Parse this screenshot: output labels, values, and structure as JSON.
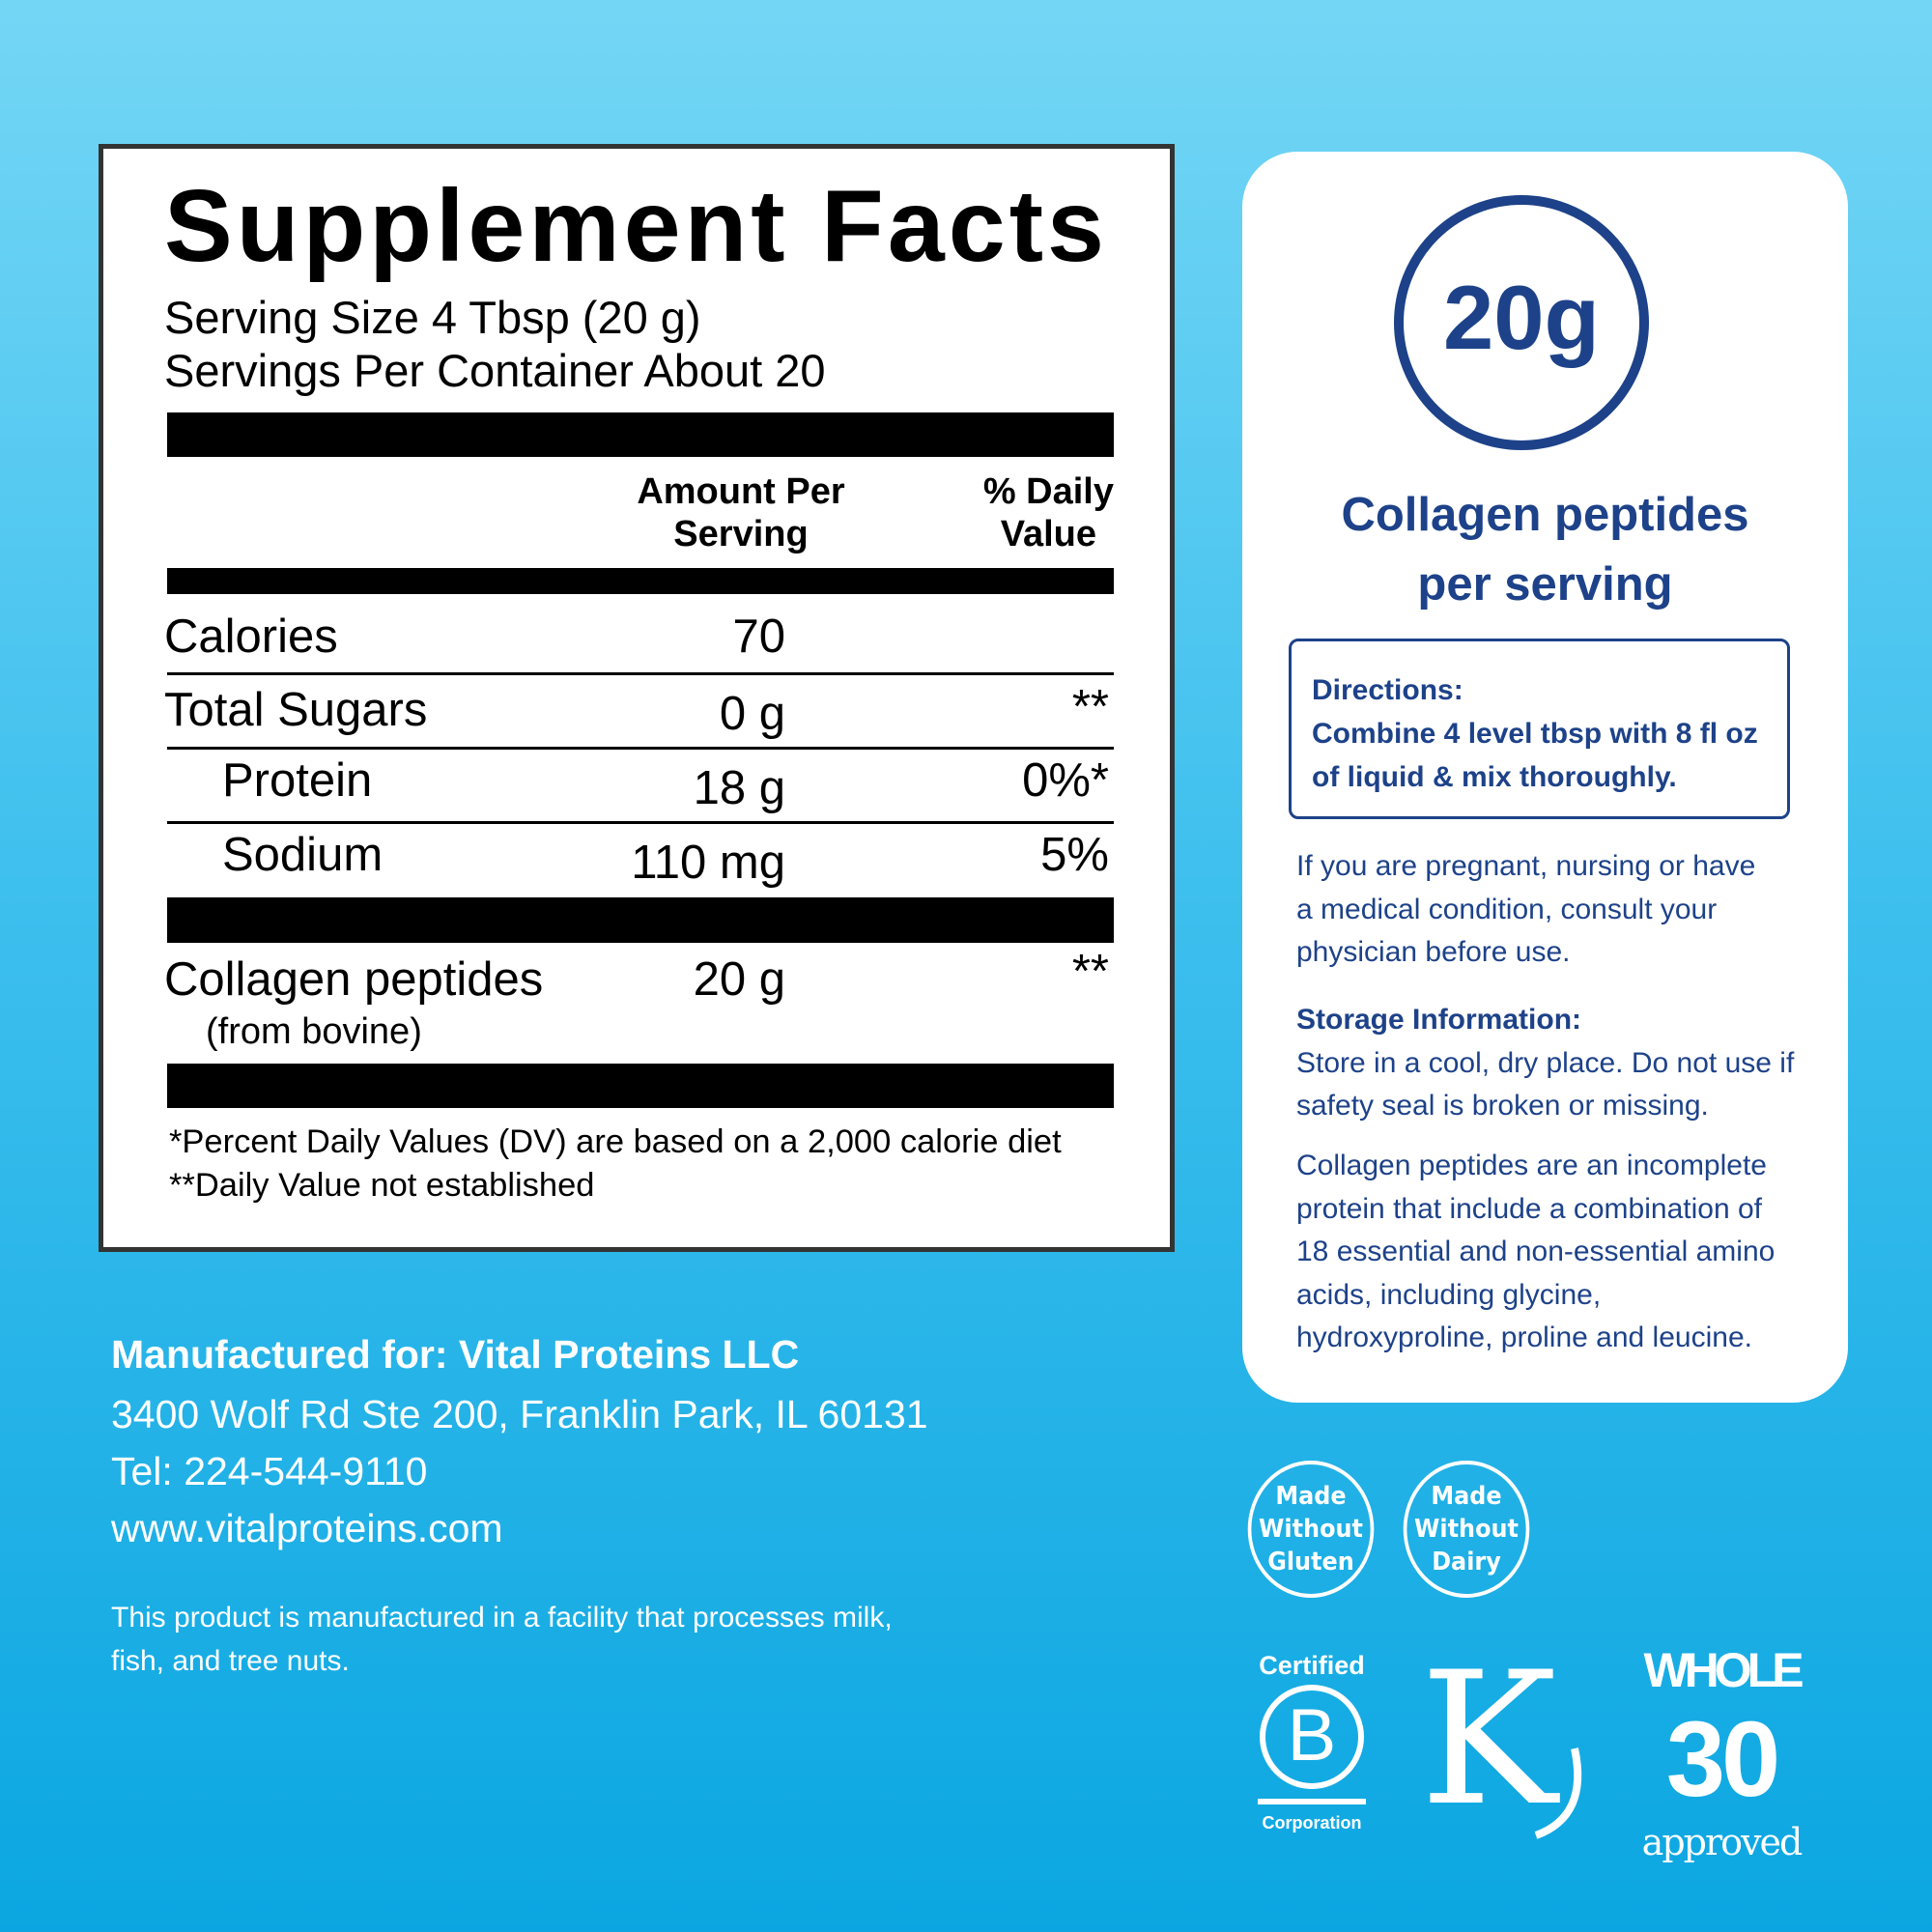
{
  "facts": {
    "title": "Supplement Facts",
    "serving_size": "Serving Size 4 Tbsp (20 g)",
    "servings_per_container": "Servings Per Container About 20",
    "header_amount": [
      "Amount Per",
      "Serving"
    ],
    "header_dv": [
      "% Daily",
      "Value"
    ],
    "rows": [
      {
        "name": "Calories",
        "amount": "70",
        "dv": ""
      },
      {
        "name": "Total Sugars",
        "amount": "0 g",
        "dv": "**"
      },
      {
        "name": "Protein",
        "amount": "18 g",
        "dv": "0%*"
      },
      {
        "name": "Sodium",
        "amount": "110 mg",
        "dv": "5%"
      }
    ],
    "collagen": {
      "name": "Collagen peptides",
      "source": "(from bovine)",
      "amount": "20 g",
      "dv": "**"
    },
    "footnotes": [
      "*Percent Daily Values (DV) are based on a 2,000 calorie diet",
      "**Daily Value not established"
    ]
  },
  "manufacturer": {
    "line1": "Manufactured for: Vital Proteins LLC",
    "address": "3400 Wolf Rd Ste 200, Franklin Park, IL 60131",
    "tel": "Tel: 224-544-9110",
    "website": "www.vitalproteins.com",
    "allergen": [
      "This product is manufactured in a facility that processes milk,",
      "fish, and tree nuts."
    ]
  },
  "card": {
    "amount": "20g",
    "caption": [
      "Collagen peptides",
      "per serving"
    ],
    "directions_title": "Directions:",
    "directions": [
      "Combine 4 level tbsp with 8 fl oz",
      "of liquid & mix thoroughly."
    ],
    "warning": [
      "If you are pregnant, nursing or have",
      "a medical condition, consult your",
      "physician before use."
    ],
    "storage_title": "Storage Information:",
    "storage": [
      "Store in a cool, dry place. Do not use if",
      "safety seal is broken or missing."
    ],
    "info": [
      "Collagen peptides are an incomplete",
      "protein that include a combination of",
      "18 essential and non-essential amino",
      "acids, including glycine,",
      "hydroxyproline, proline and leucine."
    ]
  },
  "badges": [
    [
      "Made",
      "Without",
      "Gluten"
    ],
    [
      "Made",
      "Without",
      "Dairy"
    ]
  ],
  "logos": {
    "bcorp": [
      "Certified",
      "B",
      "Corporation"
    ],
    "kosher": "K",
    "whole30": [
      "WHOLE",
      "30",
      "approved"
    ]
  },
  "colors": {
    "navy": "#1d4289",
    "bg_top": "#74d6f5",
    "bg_bottom": "#0ba6e1"
  }
}
